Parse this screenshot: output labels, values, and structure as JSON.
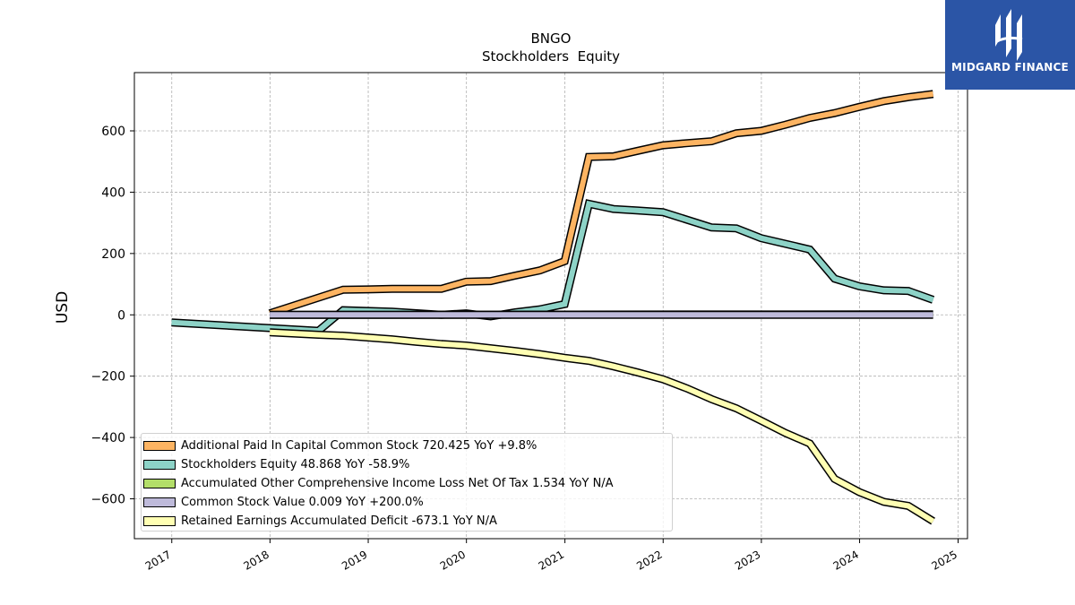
{
  "chart_data": {
    "type": "line",
    "title": "BNGO",
    "subtitle": "Stockholders  Equity",
    "xlabel": "",
    "ylabel": "USD",
    "ylim": [
      -730,
      790
    ],
    "xlim": [
      "2016-08-15",
      "2025-02-05"
    ],
    "x_ticks": [
      "2017",
      "2018",
      "2019",
      "2020",
      "2021",
      "2022",
      "2023",
      "2024",
      "2025"
    ],
    "y_ticks": [
      -600,
      -400,
      -200,
      0,
      200,
      400,
      600
    ],
    "grid": true,
    "legend_position": "lower-left",
    "series": [
      {
        "name": "Additional Paid In Capital Common Stock  720.425 YoY +9.8%",
        "color": "#fdb462",
        "points": [
          [
            "2017-12-31",
            5
          ],
          [
            "2018-09-30",
            82
          ],
          [
            "2018-12-31",
            83
          ],
          [
            "2019-03-31",
            85
          ],
          [
            "2019-09-30",
            85
          ],
          [
            "2019-12-31",
            108
          ],
          [
            "2020-03-31",
            110
          ],
          [
            "2020-06-30",
            128
          ],
          [
            "2020-09-30",
            145
          ],
          [
            "2020-12-31",
            175
          ],
          [
            "2021-03-31",
            515
          ],
          [
            "2021-06-30",
            517
          ],
          [
            "2021-09-30",
            535
          ],
          [
            "2021-12-31",
            553
          ],
          [
            "2022-03-31",
            560
          ],
          [
            "2022-06-30",
            566
          ],
          [
            "2022-09-30",
            592
          ],
          [
            "2022-12-31",
            600
          ],
          [
            "2023-03-31",
            620
          ],
          [
            "2023-06-30",
            642
          ],
          [
            "2023-09-30",
            658
          ],
          [
            "2023-12-31",
            678
          ],
          [
            "2024-03-31",
            697
          ],
          [
            "2024-06-30",
            710
          ],
          [
            "2024-09-30",
            720
          ]
        ]
      },
      {
        "name": "Stockholders Equity  48.868 YoY -58.9%",
        "color": "#8dd3c7",
        "points": [
          [
            "2016-12-31",
            -25
          ],
          [
            "2018-06-30",
            -52
          ],
          [
            "2018-09-30",
            15
          ],
          [
            "2019-03-31",
            10
          ],
          [
            "2019-09-30",
            0
          ],
          [
            "2019-12-31",
            5
          ],
          [
            "2020-03-31",
            -5
          ],
          [
            "2020-06-30",
            8
          ],
          [
            "2020-09-30",
            18
          ],
          [
            "2020-12-31",
            35
          ],
          [
            "2021-03-31",
            362
          ],
          [
            "2021-06-30",
            345
          ],
          [
            "2021-09-30",
            340
          ],
          [
            "2021-12-31",
            335
          ],
          [
            "2022-06-30",
            285
          ],
          [
            "2022-09-30",
            282
          ],
          [
            "2022-12-31",
            250
          ],
          [
            "2023-06-30",
            213
          ],
          [
            "2023-09-30",
            118
          ],
          [
            "2023-12-31",
            93
          ],
          [
            "2024-03-31",
            80
          ],
          [
            "2024-06-30",
            78
          ],
          [
            "2024-09-30",
            49
          ]
        ]
      },
      {
        "name": "Accumulated Other Comprehensive Income Loss Net Of Tax  1.534 YoY N/A",
        "color": "#b3de69",
        "points": [
          [
            "2017-12-31",
            0
          ],
          [
            "2024-09-30",
            1.534
          ]
        ]
      },
      {
        "name": "Common Stock Value  0.009 YoY +200.0%",
        "color": "#bebada",
        "points": [
          [
            "2017-12-31",
            0
          ],
          [
            "2024-09-30",
            0.009
          ]
        ]
      },
      {
        "name": "Retained Earnings Accumulated Deficit  -673.1 YoY N/A",
        "color": "#ffffb3",
        "points": [
          [
            "2017-12-31",
            -57
          ],
          [
            "2018-06-30",
            -65
          ],
          [
            "2018-09-30",
            -68
          ],
          [
            "2019-03-31",
            -80
          ],
          [
            "2019-06-30",
            -88
          ],
          [
            "2019-09-30",
            -95
          ],
          [
            "2019-12-31",
            -100
          ],
          [
            "2020-06-30",
            -118
          ],
          [
            "2020-09-30",
            -128
          ],
          [
            "2020-12-31",
            -140
          ],
          [
            "2021-03-31",
            -150
          ],
          [
            "2021-06-30",
            -168
          ],
          [
            "2021-09-30",
            -188
          ],
          [
            "2021-12-31",
            -210
          ],
          [
            "2022-03-31",
            -240
          ],
          [
            "2022-06-30",
            -275
          ],
          [
            "2022-09-30",
            -305
          ],
          [
            "2022-12-31",
            -345
          ],
          [
            "2023-03-31",
            -385
          ],
          [
            "2023-06-30",
            -420
          ],
          [
            "2023-09-30",
            -535
          ],
          [
            "2023-12-31",
            -578
          ],
          [
            "2024-03-31",
            -610
          ],
          [
            "2024-06-30",
            -623
          ],
          [
            "2024-09-30",
            -673.1
          ]
        ]
      }
    ]
  },
  "watermark": {
    "text": "MIDGARD FINANCE",
    "color": "#2b55a6"
  }
}
